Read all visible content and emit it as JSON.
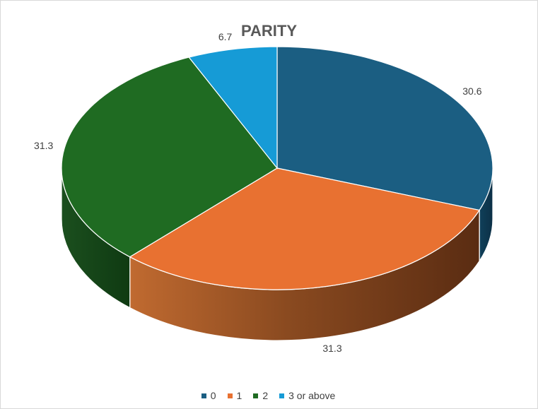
{
  "chart_data": {
    "type": "pie",
    "title": "PARITY",
    "categories": [
      "0",
      "1",
      "2",
      "3 or above"
    ],
    "values": [
      30.6,
      31.3,
      31.3,
      6.7
    ],
    "colors": [
      "#1b5e82",
      "#e87131",
      "#1f6b22",
      "#169bd6"
    ],
    "legend_position": "bottom",
    "style": "3d-exploded-none"
  }
}
